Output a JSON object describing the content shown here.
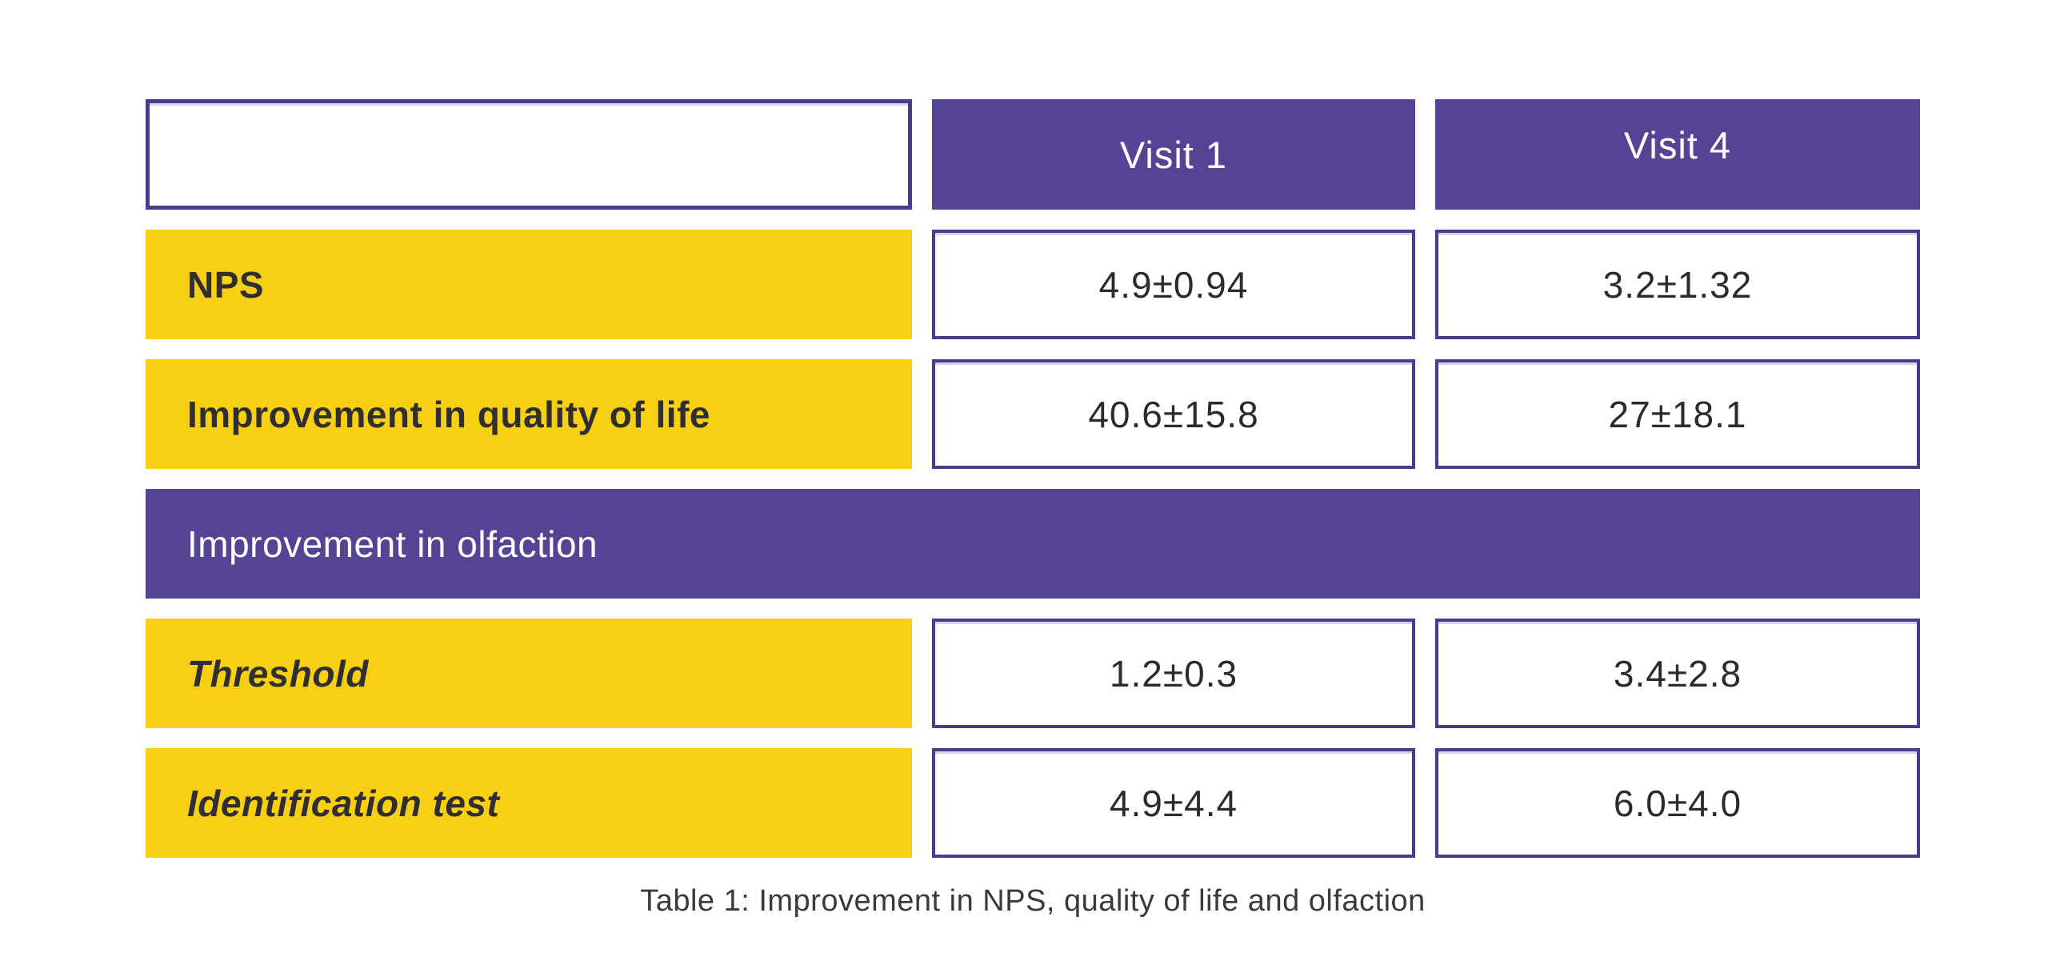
{
  "table": {
    "caption": "Table 1: Improvement in NPS, quality of life and olfaction",
    "header": {
      "corner": "",
      "visit1": "Visit 1",
      "visit4": "Visit 4"
    },
    "section": {
      "label": "Improvement in olfaction"
    },
    "rows": [
      {
        "label": "NPS",
        "visit1": "4.9±0.94",
        "visit4": "3.2±1.32"
      },
      {
        "label": "Improvement in quality of life",
        "visit1": "40.6±15.8",
        "visit4": "27±18.1"
      },
      {
        "label": "Threshold",
        "visit1": "1.2±0.3",
        "visit4": "3.4±2.8"
      },
      {
        "label": "Identification test",
        "visit1": "4.9±4.4",
        "visit4": "6.0±4.0"
      }
    ],
    "colors": {
      "purple": "#554494",
      "border_purple": "#4c3a8c",
      "yellow": "#f8d013",
      "text_dark": "#2f2e33",
      "text_light": "#ffffff"
    }
  },
  "chart_data": {
    "type": "table",
    "title": "Table 1: Improvement in NPS, quality of life and olfaction",
    "columns": [
      "",
      "Visit 1",
      "Visit 4"
    ],
    "rows": [
      [
        "NPS",
        "4.9±0.94",
        "3.2±1.32"
      ],
      [
        "Improvement in quality of life",
        "40.6±15.8",
        "27±18.1"
      ],
      [
        "Improvement in olfaction",
        "",
        ""
      ],
      [
        "Threshold",
        "1.2±0.3",
        "3.4±2.8"
      ],
      [
        "Identification test",
        "4.9±4.4",
        "6.0±4.0"
      ]
    ]
  }
}
